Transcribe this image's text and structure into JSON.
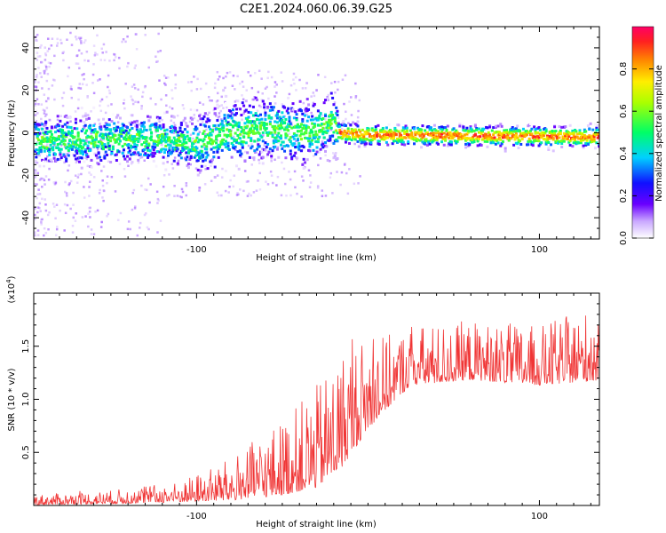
{
  "title": "C2E1.2024.060.06.39.G25",
  "chart_data": [
    {
      "type": "heatmap",
      "xlabel": "Height of straight line (km)",
      "ylabel": "Frequency (Hz)",
      "xlim": [
        -195,
        135
      ],
      "ylim": [
        -50,
        50
      ],
      "x_ticks": [
        -100,
        100
      ],
      "y_ticks": [
        40,
        20,
        0,
        -20,
        -40
      ],
      "colorbar": {
        "label": "Normalized spectral amplitude",
        "ticks": [
          0.0,
          0.2,
          0.4,
          0.6,
          0.8
        ],
        "range": [
          0,
          1
        ]
      },
      "ridge": [
        {
          "x": -195,
          "f": -4
        },
        {
          "x": -150,
          "f": -3
        },
        {
          "x": -120,
          "f": -3
        },
        {
          "x": -100,
          "f": -5
        },
        {
          "x": -80,
          "f": 0
        },
        {
          "x": -60,
          "f": 2
        },
        {
          "x": -40,
          "f": 0
        },
        {
          "x": -30,
          "f": 1
        },
        {
          "x": -22,
          "f": 6
        },
        {
          "x": -18,
          "f": 0
        },
        {
          "x": 0,
          "f": -1
        },
        {
          "x": 135,
          "f": -2
        }
      ]
    },
    {
      "type": "line",
      "xlabel": "Height of straight line (km)",
      "ylabel": "SNR (10 * v/v)",
      "exponent_label": "(x10",
      "exponent_power": "4",
      "exponent_close": ")",
      "xlim": [
        -195,
        135
      ],
      "ylim": [
        0,
        2.0
      ],
      "x_ticks": [
        -100,
        100
      ],
      "y_ticks": [
        0.5,
        1.0,
        1.5
      ],
      "color": "#f03535",
      "envelope": [
        {
          "x": -195,
          "base": 0.01,
          "amp": 0.06
        },
        {
          "x": -150,
          "base": 0.02,
          "amp": 0.08
        },
        {
          "x": -110,
          "base": 0.04,
          "amp": 0.12
        },
        {
          "x": -80,
          "base": 0.06,
          "amp": 0.25
        },
        {
          "x": -50,
          "base": 0.12,
          "amp": 0.45
        },
        {
          "x": -30,
          "base": 0.2,
          "amp": 0.6
        },
        {
          "x": -15,
          "base": 0.4,
          "amp": 0.7
        },
        {
          "x": 0,
          "base": 0.75,
          "amp": 0.55
        },
        {
          "x": 15,
          "base": 1.0,
          "amp": 0.4
        },
        {
          "x": 25,
          "base": 1.15,
          "amp": 0.35
        },
        {
          "x": 60,
          "base": 1.2,
          "amp": 0.35
        },
        {
          "x": 100,
          "base": 1.15,
          "amp": 0.35
        },
        {
          "x": 135,
          "base": 1.2,
          "amp": 0.45
        }
      ]
    }
  ]
}
